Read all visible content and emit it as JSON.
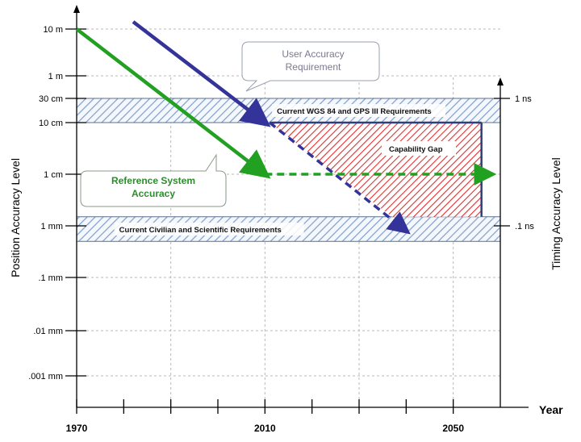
{
  "chart_data": {
    "type": "line",
    "title": "",
    "xlabel": "Year",
    "ylabel": "Position Accuracy Level",
    "y2label": "Timing Accuracy Level",
    "xlim": [
      1970,
      2060
    ],
    "x_ticks": [
      1970,
      2010,
      2050
    ],
    "x_minor_ticks": [
      1980,
      1990,
      2000,
      2020,
      2030,
      2040
    ],
    "y_scale": "log",
    "y_unit": "mm",
    "ylim": [
      0.001,
      10000
    ],
    "y_ticks": [
      {
        "value": 10000,
        "label": "10 m"
      },
      {
        "value": 1000,
        "label": "1 m"
      },
      {
        "value": 300,
        "label": "30 cm"
      },
      {
        "value": 100,
        "label": "10 cm"
      },
      {
        "value": 10,
        "label": "1 cm"
      },
      {
        "value": 1,
        "label": "1 mm"
      },
      {
        "value": 0.1,
        "label": ".1 mm"
      },
      {
        "value": 0.01,
        "label": ".01 mm"
      },
      {
        "value": 0.001,
        "label": ".001 mm"
      }
    ],
    "y2_ticks": [
      {
        "value": 300,
        "label": "1 ns"
      },
      {
        "value": 1,
        "label": ".1 ns"
      }
    ],
    "grid": true,
    "bands": [
      {
        "label": "Current WGS 84 and GPS III Requirements",
        "y_range": [
          100,
          300
        ],
        "x_range": [
          1970,
          2060
        ],
        "style": "hatched",
        "color": "#8aa8d0"
      },
      {
        "label": "Current Civilian and Scientific Requirements",
        "y_range": [
          0.5,
          1.5
        ],
        "x_range": [
          1970,
          2060
        ],
        "style": "hatched",
        "color": "#8aa8d0"
      }
    ],
    "gap_region": {
      "label": "Capability Gap",
      "color": "#e03030",
      "points": [
        [
          2011,
          100
        ],
        [
          2056,
          100
        ],
        [
          2056,
          1.5
        ],
        [
          2037,
          1.5
        ]
      ]
    },
    "series": [
      {
        "name": "User Accuracy Requirement",
        "color": "#333399",
        "style": "solid",
        "points": [
          [
            1982,
            20000
          ],
          [
            2010,
            100
          ]
        ]
      },
      {
        "name": "User Accuracy Requirement",
        "color": "#333399",
        "style": "dashed",
        "points": [
          [
            2011,
            100
          ],
          [
            2040,
            0.8
          ]
        ]
      },
      {
        "name": "Reference System Accuracy",
        "color": "#22a022",
        "style": "solid",
        "points": [
          [
            1970,
            10000
          ],
          [
            2010,
            10
          ]
        ]
      },
      {
        "name": "Reference System Accuracy",
        "color": "#22a022",
        "style": "dashed",
        "points": [
          [
            2010,
            10
          ],
          [
            2058,
            10
          ]
        ]
      }
    ],
    "annotations": [
      {
        "name": "user-callout",
        "lines": [
          "User Accuracy",
          "Requirement"
        ],
        "color": "#7a7a90"
      },
      {
        "name": "reference-callout",
        "lines": [
          "Reference System",
          "Accuracy"
        ],
        "color": "#2e8b2e"
      }
    ]
  }
}
